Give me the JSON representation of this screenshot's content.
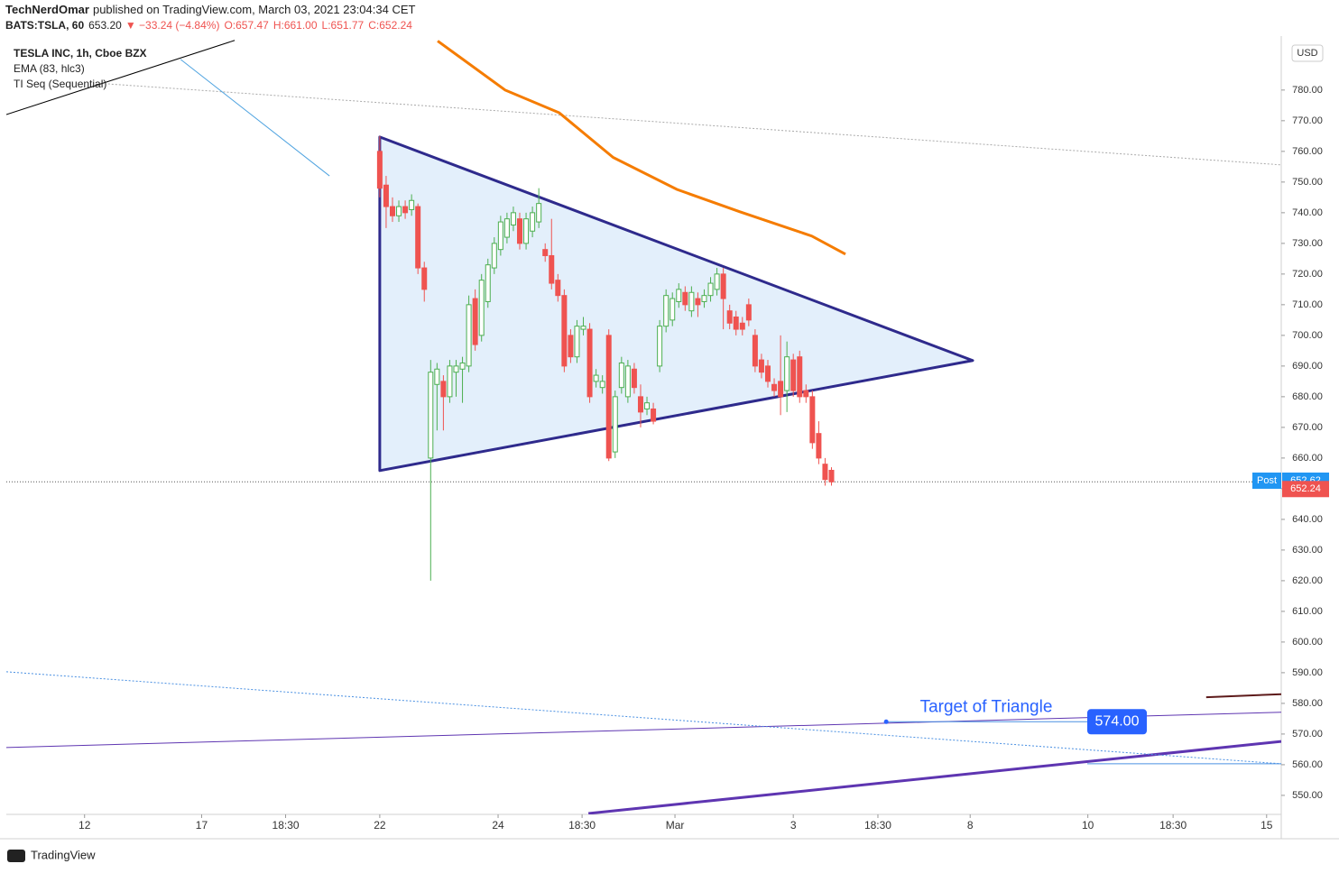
{
  "chart_data": {
    "type": "candlestick",
    "header": {
      "author": "TechNerdOmar",
      "published": "published on TradingView.com, March 03, 2021 23:04:34 CET",
      "symbol": "BATS:TSLA, 60",
      "last": "653.20",
      "change": "▼ −33.24 (−4.84%)",
      "ohlc": [
        "O:657.47",
        "H:661.00",
        "L:651.77",
        "C:652.24"
      ]
    },
    "legend": [
      "TESLA INC, 1h, Cboe BZX",
      "EMA (83, hlc3)",
      "TI Seq (Sequential)"
    ],
    "currency": "USD",
    "brand": "TradingView",
    "up_color": "#4caf50",
    "down_color": "#ef5350",
    "xlim": [
      -58.7,
      141.7
    ],
    "ylim": [
      543.8,
      797.6
    ],
    "xticks": [
      {
        "value": -46.4,
        "label": "12"
      },
      {
        "value": -28,
        "label": "17"
      },
      {
        "value": -14.8,
        "label": "18:30"
      },
      {
        "value": 0,
        "label": "22"
      },
      {
        "value": 18.6,
        "label": "24"
      },
      {
        "value": 31.8,
        "label": "18:30"
      },
      {
        "value": 46.4,
        "label": "Mar"
      },
      {
        "value": 65,
        "label": "3"
      },
      {
        "value": 78.3,
        "label": "18:30"
      },
      {
        "value": 92.8,
        "label": "8"
      },
      {
        "value": 111.3,
        "label": "10"
      },
      {
        "value": 124.7,
        "label": "18:30"
      },
      {
        "value": 139.4,
        "label": "15"
      }
    ],
    "yticks": [
      {
        "value": 550,
        "label": "550.00"
      },
      {
        "value": 560,
        "label": "560.00"
      },
      {
        "value": 570,
        "label": "570.00"
      },
      {
        "value": 580,
        "label": "580.00"
      },
      {
        "value": 590,
        "label": "590.00"
      },
      {
        "value": 600,
        "label": "600.00"
      },
      {
        "value": 610,
        "label": "610.00"
      },
      {
        "value": 620,
        "label": "620.00"
      },
      {
        "value": 630,
        "label": "630.00"
      },
      {
        "value": 640,
        "label": "640.00"
      },
      {
        "value": 650,
        "label": "650.00"
      },
      {
        "value": 660,
        "label": "660.00"
      },
      {
        "value": 670,
        "label": "670.00"
      },
      {
        "value": 680,
        "label": "680.00"
      },
      {
        "value": 690,
        "label": "690.00"
      },
      {
        "value": 700,
        "label": "700.00"
      },
      {
        "value": 710,
        "label": "710.00"
      },
      {
        "value": 720,
        "label": "720.00"
      },
      {
        "value": 730,
        "label": "730.00"
      },
      {
        "value": 740,
        "label": "740.00"
      },
      {
        "value": 750,
        "label": "750.00"
      },
      {
        "value": 760,
        "label": "760.00"
      },
      {
        "value": 770,
        "label": "770.00"
      },
      {
        "value": 780,
        "label": "780.00"
      }
    ],
    "candles": [
      {
        "x": 0,
        "open": 760,
        "high": 765,
        "low": 745,
        "close": 748
      },
      {
        "x": 1,
        "open": 749,
        "high": 752,
        "low": 735,
        "close": 742
      },
      {
        "x": 2,
        "open": 742,
        "high": 745,
        "low": 737,
        "close": 739
      },
      {
        "x": 3,
        "open": 739,
        "high": 744,
        "low": 737,
        "close": 742
      },
      {
        "x": 4,
        "open": 742,
        "high": 744,
        "low": 738,
        "close": 740
      },
      {
        "x": 5,
        "open": 741,
        "high": 746,
        "low": 739,
        "close": 744
      },
      {
        "x": 6,
        "open": 742,
        "high": 743,
        "low": 720,
        "close": 722
      },
      {
        "x": 7,
        "open": 722,
        "high": 724,
        "low": 711,
        "close": 715
      },
      {
        "x": 8,
        "open": 660,
        "high": 692,
        "low": 620,
        "close": 688
      },
      {
        "x": 9,
        "open": 684,
        "high": 691,
        "low": 669,
        "close": 689
      },
      {
        "x": 10,
        "open": 685,
        "high": 687,
        "low": 669,
        "close": 680
      },
      {
        "x": 11,
        "open": 680,
        "high": 692,
        "low": 678,
        "close": 690
      },
      {
        "x": 12,
        "open": 688,
        "high": 692,
        "low": 680,
        "close": 690
      },
      {
        "x": 13,
        "open": 689,
        "high": 693,
        "low": 678,
        "close": 691
      },
      {
        "x": 14,
        "open": 690,
        "high": 713,
        "low": 688,
        "close": 710
      },
      {
        "x": 15,
        "open": 712,
        "high": 715,
        "low": 695,
        "close": 697
      },
      {
        "x": 16,
        "open": 700,
        "high": 720,
        "low": 698,
        "close": 718
      },
      {
        "x": 17,
        "open": 711,
        "high": 725,
        "low": 709,
        "close": 723
      },
      {
        "x": 18,
        "open": 722,
        "high": 732,
        "low": 720,
        "close": 730
      },
      {
        "x": 19,
        "open": 728,
        "high": 739,
        "low": 726,
        "close": 737
      },
      {
        "x": 20,
        "open": 732,
        "high": 740,
        "low": 730,
        "close": 738
      },
      {
        "x": 21,
        "open": 736,
        "high": 742,
        "low": 734,
        "close": 740
      },
      {
        "x": 22,
        "open": 738,
        "high": 740,
        "low": 728,
        "close": 730
      },
      {
        "x": 23,
        "open": 730,
        "high": 740,
        "low": 728,
        "close": 738
      },
      {
        "x": 24,
        "open": 734,
        "high": 742,
        "low": 732,
        "close": 740
      },
      {
        "x": 25,
        "open": 737,
        "high": 748,
        "low": 735,
        "close": 743
      },
      {
        "x": 26,
        "open": 728,
        "high": 730,
        "low": 724,
        "close": 726
      },
      {
        "x": 27,
        "open": 726,
        "high": 738,
        "low": 715,
        "close": 717
      },
      {
        "x": 28,
        "open": 718,
        "high": 720,
        "low": 711,
        "close": 713
      },
      {
        "x": 29,
        "open": 713,
        "high": 715,
        "low": 688,
        "close": 690
      },
      {
        "x": 30,
        "open": 700,
        "high": 702,
        "low": 691,
        "close": 693
      },
      {
        "x": 31,
        "open": 693,
        "high": 705,
        "low": 691,
        "close": 703
      },
      {
        "x": 32,
        "open": 702,
        "high": 706,
        "low": 700,
        "close": 703
      },
      {
        "x": 33,
        "open": 702,
        "high": 704,
        "low": 678,
        "close": 680
      },
      {
        "x": 34,
        "open": 685,
        "high": 689,
        "low": 683,
        "close": 687
      },
      {
        "x": 35,
        "open": 683,
        "high": 687,
        "low": 681,
        "close": 685
      },
      {
        "x": 36,
        "open": 700,
        "high": 702,
        "low": 659,
        "close": 660
      },
      {
        "x": 37,
        "open": 662,
        "high": 682,
        "low": 660,
        "close": 680
      },
      {
        "x": 38,
        "open": 683,
        "high": 693,
        "low": 681,
        "close": 691
      },
      {
        "x": 39,
        "open": 680,
        "high": 692,
        "low": 678,
        "close": 690
      },
      {
        "x": 40,
        "open": 689,
        "high": 691,
        "low": 681,
        "close": 683
      },
      {
        "x": 41,
        "open": 680,
        "high": 684,
        "low": 670,
        "close": 675
      },
      {
        "x": 42,
        "open": 676,
        "high": 680,
        "low": 674,
        "close": 678
      },
      {
        "x": 43,
        "open": 676,
        "high": 678,
        "low": 671,
        "close": 672
      },
      {
        "x": 44,
        "open": 690,
        "high": 705,
        "low": 688,
        "close": 703
      },
      {
        "x": 45,
        "open": 703,
        "high": 715,
        "low": 701,
        "close": 713
      },
      {
        "x": 46,
        "open": 705,
        "high": 714,
        "low": 703,
        "close": 712
      },
      {
        "x": 47,
        "open": 711,
        "high": 717,
        "low": 709,
        "close": 715
      },
      {
        "x": 48,
        "open": 714,
        "high": 716,
        "low": 708,
        "close": 710
      },
      {
        "x": 49,
        "open": 708,
        "high": 716,
        "low": 706,
        "close": 714
      },
      {
        "x": 50,
        "open": 712,
        "high": 714,
        "low": 706,
        "close": 710
      },
      {
        "x": 51,
        "open": 711,
        "high": 715,
        "low": 709,
        "close": 713
      },
      {
        "x": 52,
        "open": 713,
        "high": 719,
        "low": 711,
        "close": 717
      },
      {
        "x": 53,
        "open": 715,
        "high": 722,
        "low": 713,
        "close": 720
      },
      {
        "x": 54,
        "open": 720,
        "high": 722,
        "low": 702,
        "close": 712
      },
      {
        "x": 55,
        "open": 708,
        "high": 710,
        "low": 702,
        "close": 704
      },
      {
        "x": 56,
        "open": 706,
        "high": 708,
        "low": 700,
        "close": 702
      },
      {
        "x": 57,
        "open": 704,
        "high": 706,
        "low": 700,
        "close": 702
      },
      {
        "x": 58,
        "open": 710,
        "high": 712,
        "low": 703,
        "close": 705
      },
      {
        "x": 59,
        "open": 700,
        "high": 702,
        "low": 688,
        "close": 690
      },
      {
        "x": 60,
        "open": 692,
        "high": 694,
        "low": 686,
        "close": 688
      },
      {
        "x": 61,
        "open": 690,
        "high": 692,
        "low": 683,
        "close": 685
      },
      {
        "x": 62,
        "open": 684,
        "high": 686,
        "low": 680,
        "close": 682
      },
      {
        "x": 63,
        "open": 685,
        "high": 700,
        "low": 674,
        "close": 680
      },
      {
        "x": 64,
        "open": 682,
        "high": 698,
        "low": 675,
        "close": 693
      },
      {
        "x": 65,
        "open": 692,
        "high": 694,
        "low": 680,
        "close": 682
      },
      {
        "x": 66,
        "open": 693,
        "high": 695,
        "low": 678,
        "close": 680
      },
      {
        "x": 67,
        "open": 682,
        "high": 684,
        "low": 678,
        "close": 680
      },
      {
        "x": 68,
        "open": 680,
        "high": 682,
        "low": 663,
        "close": 665
      },
      {
        "x": 69,
        "open": 668,
        "high": 672,
        "low": 658,
        "close": 660
      },
      {
        "x": 70,
        "open": 658,
        "high": 660,
        "low": 651,
        "close": 653
      },
      {
        "x": 71,
        "open": 656,
        "high": 657,
        "low": 651,
        "close": 652.24
      }
    ],
    "ema": {
      "x": [
        9.1,
        19.7,
        28.2,
        36.7,
        46.7,
        56.6,
        67.9,
        73.2
      ],
      "values": [
        796,
        780,
        772.6,
        758,
        747.6,
        740.3,
        732.4,
        726.5
      ],
      "color": "#f57c00"
    },
    "triangle": {
      "x": [
        0,
        93.2,
        0
      ],
      "values": [
        764.7,
        691.8,
        655.9
      ],
      "color": "#2e2a8c",
      "fill": "#e3effb"
    },
    "trendlines": [
      {
        "x": [
          -58.7,
          141.7
        ],
        "values": [
          565.6,
          577.1
        ],
        "color": "#5e35b1",
        "width": 1,
        "dash": false
      },
      {
        "x": [
          32.8,
          141.7
        ],
        "values": [
          544.1,
          567.6
        ],
        "color": "#5e35b1",
        "width": 3,
        "dash": false
      },
      {
        "x": [
          -58.7,
          141.7
        ],
        "values": [
          590.3,
          560.3
        ],
        "color": "#4a90e2",
        "width": 1,
        "dash": true
      },
      {
        "x": [
          -42.7,
          141.7
        ],
        "values": [
          782,
          755.6
        ],
        "color": "#aaaaaa",
        "width": 1,
        "dash": true
      },
      {
        "x": [
          -58.7,
          -22.8
        ],
        "values": [
          772,
          796.2
        ],
        "color": "#000000",
        "width": 1,
        "dash": false
      },
      {
        "x": [
          -31.3,
          -7.9
        ],
        "values": [
          790,
          752
        ],
        "color": "#4fa3e0",
        "width": 1,
        "dash": false
      },
      {
        "x": [
          129.9,
          141.7
        ],
        "values": [
          582,
          583
        ],
        "color": "#5d1a1a",
        "width": 2,
        "dash": false
      },
      {
        "x": [
          79.6,
          111.2
        ],
        "values": [
          574,
          574
        ],
        "color": "#4a90e2",
        "width": 1,
        "dash": false
      },
      {
        "x": [
          111.2,
          141.7
        ],
        "values": [
          560.3,
          560.3
        ],
        "color": "#4a90e2",
        "width": 1,
        "dash": false
      }
    ],
    "annotation": {
      "text": "Target of Triangle",
      "target": 574,
      "target_label": "574.00"
    },
    "post": {
      "label": "Post",
      "value": 652.62,
      "value_label": "652.62"
    },
    "last_price": {
      "value": 652.24,
      "value_label": "652.24"
    }
  }
}
